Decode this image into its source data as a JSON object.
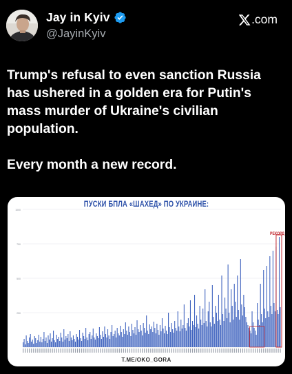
{
  "post": {
    "author": {
      "display_name": "Jay in Kyiv",
      "handle": "@JayinKyiv",
      "verified_icon": "verified-badge-icon"
    },
    "site_label": "𝕏.com",
    "site_text": ".com",
    "text_paragraph_1": "Trump's refusal to even sanction Russia has ushered in a golden era for Putin's mass murder of Ukraine's civilian population.",
    "text_paragraph_2": "Every month a new record."
  },
  "media": {
    "chart_title": "ПУСКИ БПЛА «ШАХЕД» ПО УКРАИНЕ:",
    "record_label": "РЕКОРД",
    "source": "T.ME/OKO_GORA",
    "colors": {
      "bar": "#3f63bf",
      "title": "#2b4fa8",
      "highlight": "#c0262e"
    }
  },
  "chart_data": {
    "type": "bar",
    "title": "ПУСКИ БПЛА «ШАХЕД» ПО УКРАИНЕ:",
    "xlabel": "",
    "ylabel": "",
    "ylim": [
      0,
      1000
    ],
    "yticks": [
      250,
      500,
      750,
      1000
    ],
    "highlight": "РЕКОРД",
    "values": [
      35,
      60,
      20,
      85,
      45,
      30,
      70,
      95,
      40,
      55,
      25,
      80,
      65,
      30,
      50,
      90,
      40,
      75,
      35,
      60,
      110,
      45,
      70,
      30,
      85,
      55,
      100,
      40,
      65,
      120,
      50,
      35,
      90,
      60,
      75,
      45,
      105,
      70,
      40,
      130,
      55,
      80,
      65,
      95,
      45,
      115,
      70,
      50,
      85,
      60,
      40,
      95,
      75,
      55,
      125,
      65,
      45,
      105,
      80,
      60,
      140,
      70,
      50,
      95,
      110,
      60,
      85,
      135,
      70,
      55,
      100,
      80,
      65,
      145,
      90,
      60,
      115,
      75,
      150,
      95,
      70,
      130,
      85,
      60,
      110,
      160,
      80,
      95,
      120,
      70,
      140,
      100,
      85,
      155,
      110,
      75,
      130,
      95,
      180,
      120,
      90,
      150,
      110,
      80,
      170,
      125,
      100,
      145,
      90,
      195,
      130,
      110,
      160,
      120,
      85,
      175,
      140,
      105,
      230,
      120,
      95,
      165,
      130,
      150,
      110,
      185,
      140,
      100,
      170,
      125,
      90,
      160,
      115,
      210,
      135,
      100,
      155,
      120,
      95,
      250,
      145,
      110,
      175,
      130,
      105,
      190,
      140,
      120,
      260,
      150,
      115,
      200,
      135,
      160,
      310,
      140,
      120,
      175,
      210,
      150,
      340,
      125,
      190,
      160,
      380,
      145,
      230,
      170,
      135,
      300,
      200,
      160,
      280,
      175,
      420,
      190,
      150,
      260,
      330,
      180,
      150,
      450,
      220,
      170,
      300,
      250,
      190,
      380,
      200,
      160,
      520,
      240,
      190,
      360,
      280,
      210,
      600,
      250,
      180,
      420,
      300,
      200,
      460,
      330,
      220,
      520,
      270,
      200,
      640,
      310,
      230,
      380,
      290,
      220,
      180,
      160,
      140,
      120,
      100,
      260,
      180,
      140,
      120,
      90,
      320,
      200,
      160,
      460,
      240,
      180,
      560,
      280,
      210,
      590,
      260,
      220,
      660,
      300,
      240,
      700,
      320,
      260,
      730,
      270,
      240,
      800,
      290
    ]
  }
}
